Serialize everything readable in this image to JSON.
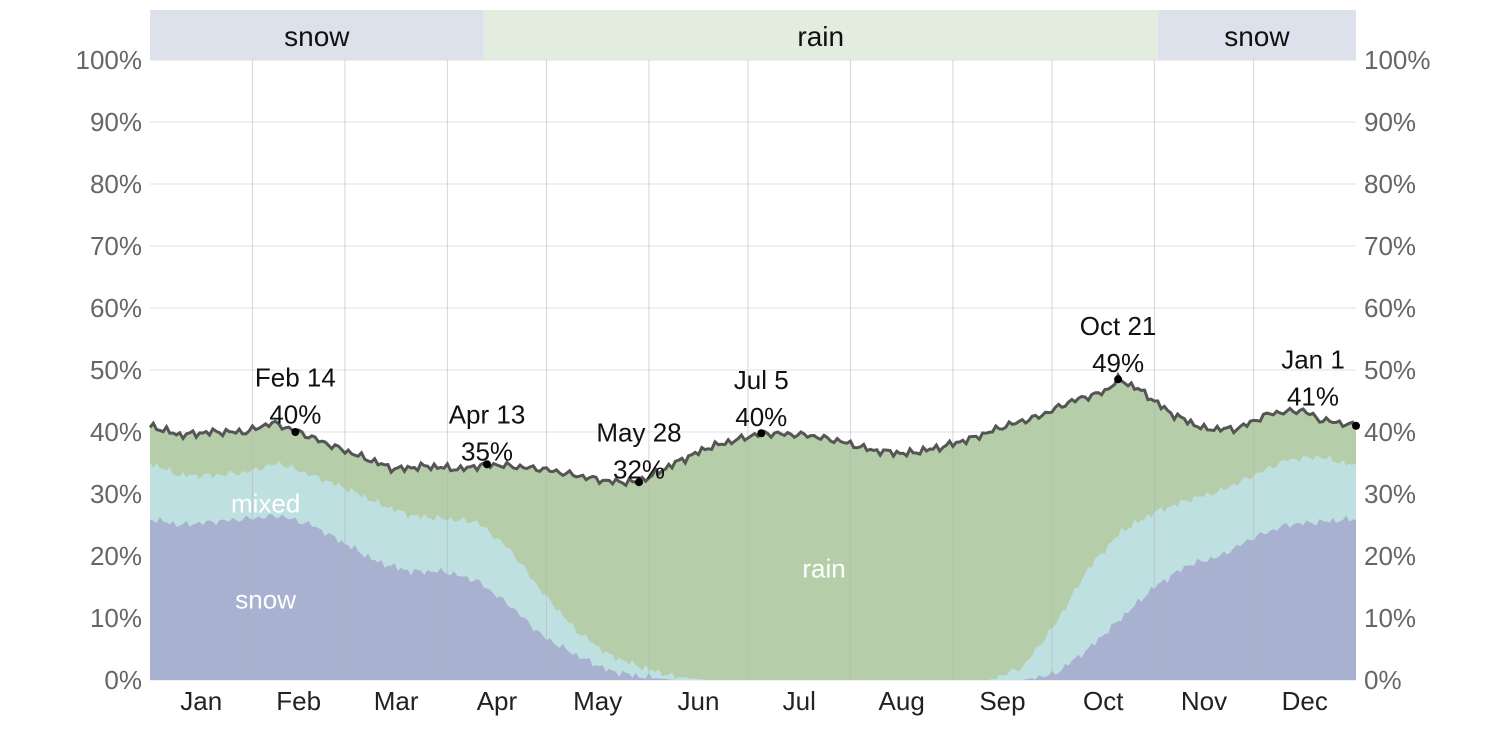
{
  "chart_data": {
    "type": "area",
    "ylim": [
      0,
      100
    ],
    "y_ticks": [
      "0%",
      "10%",
      "20%",
      "30%",
      "40%",
      "50%",
      "60%",
      "70%",
      "80%",
      "90%",
      "100%"
    ],
    "months": [
      "Jan",
      "Feb",
      "Mar",
      "Apr",
      "May",
      "Jun",
      "Jul",
      "Aug",
      "Sep",
      "Oct",
      "Nov",
      "Dec"
    ],
    "season_bands": [
      {
        "label": "snow",
        "start_day": 1,
        "end_day": 102,
        "color": "#dde1ec"
      },
      {
        "label": "rain",
        "start_day": 102,
        "end_day": 306,
        "color": "#e2ecdf"
      },
      {
        "label": "snow",
        "start_day": 306,
        "end_day": 366,
        "color": "#dde1ec"
      }
    ],
    "series": [
      {
        "name": "snow",
        "color": "#a8b1cf",
        "label_pos": {
          "day": 36,
          "value": 13
        },
        "points": [
          [
            1,
            26
          ],
          [
            10,
            25
          ],
          [
            20,
            25.5
          ],
          [
            30,
            26
          ],
          [
            40,
            26.5
          ],
          [
            50,
            25
          ],
          [
            60,
            22
          ],
          [
            70,
            19
          ],
          [
            80,
            17.5
          ],
          [
            90,
            17.5
          ],
          [
            100,
            16
          ],
          [
            110,
            12
          ],
          [
            120,
            7
          ],
          [
            130,
            4
          ],
          [
            140,
            1.5
          ],
          [
            150,
            0.5
          ],
          [
            160,
            0
          ],
          [
            260,
            0
          ],
          [
            265,
            0
          ],
          [
            275,
            1
          ],
          [
            285,
            5
          ],
          [
            295,
            10
          ],
          [
            305,
            15
          ],
          [
            315,
            18.5
          ],
          [
            325,
            20
          ],
          [
            335,
            23
          ],
          [
            345,
            25
          ],
          [
            355,
            25.5
          ],
          [
            366,
            26
          ]
        ]
      },
      {
        "name": "mixed",
        "color": "#bfe0e0",
        "label_pos": {
          "day": 36,
          "value": 28.5
        },
        "points": [
          [
            1,
            35
          ],
          [
            10,
            33
          ],
          [
            20,
            33
          ],
          [
            30,
            33.5
          ],
          [
            40,
            35
          ],
          [
            50,
            33
          ],
          [
            60,
            31
          ],
          [
            70,
            28.5
          ],
          [
            80,
            26.5
          ],
          [
            90,
            26
          ],
          [
            100,
            25.5
          ],
          [
            110,
            21
          ],
          [
            120,
            14
          ],
          [
            130,
            8
          ],
          [
            140,
            4
          ],
          [
            150,
            2
          ],
          [
            160,
            0.5
          ],
          [
            170,
            0
          ],
          [
            255,
            0
          ],
          [
            265,
            2
          ],
          [
            275,
            9
          ],
          [
            285,
            18
          ],
          [
            295,
            24
          ],
          [
            305,
            27
          ],
          [
            315,
            29
          ],
          [
            325,
            30.5
          ],
          [
            335,
            33
          ],
          [
            345,
            35.5
          ],
          [
            355,
            36
          ],
          [
            366,
            34.5
          ]
        ]
      },
      {
        "name": "rain",
        "color": "#b5cea9",
        "label_pos": {
          "day": 205,
          "value": 18
        },
        "points": [
          [
            1,
            41
          ],
          [
            10,
            39.5
          ],
          [
            20,
            40
          ],
          [
            30,
            40
          ],
          [
            38,
            41.5
          ],
          [
            46,
            40
          ],
          [
            55,
            38
          ],
          [
            65,
            36
          ],
          [
            75,
            34
          ],
          [
            85,
            34.5
          ],
          [
            95,
            34
          ],
          [
            103,
            34.8
          ],
          [
            110,
            34.5
          ],
          [
            120,
            34
          ],
          [
            130,
            33
          ],
          [
            140,
            32
          ],
          [
            149,
            31.9
          ],
          [
            160,
            35
          ],
          [
            170,
            37.5
          ],
          [
            186,
            39.8
          ],
          [
            200,
            39.5
          ],
          [
            210,
            38.5
          ],
          [
            220,
            37
          ],
          [
            230,
            36.5
          ],
          [
            240,
            37.5
          ],
          [
            250,
            39
          ],
          [
            260,
            41
          ],
          [
            270,
            42.5
          ],
          [
            280,
            45
          ],
          [
            290,
            46.5
          ],
          [
            294,
            48.5
          ],
          [
            300,
            47
          ],
          [
            310,
            43
          ],
          [
            320,
            40.5
          ],
          [
            330,
            40.5
          ],
          [
            340,
            43
          ],
          [
            350,
            43.5
          ],
          [
            355,
            42
          ],
          [
            366,
            41
          ]
        ]
      }
    ],
    "annotations": [
      {
        "date": "Feb 14",
        "day": 45,
        "value": 40,
        "label": "40%",
        "label_above": 1.4
      },
      {
        "date": "Apr 13",
        "day": 103,
        "value": 34.8,
        "label": "35%",
        "label_above": 0.6
      },
      {
        "date": "May 28",
        "day": 149,
        "value": 31.9,
        "label": "32%",
        "label_above": 0.6
      },
      {
        "date": "Jul 5",
        "day": 186,
        "value": 39.8,
        "label": "40%",
        "label_above": 1.2
      },
      {
        "date": "Oct 21",
        "day": 294,
        "value": 48.5,
        "label": "49%",
        "label_above": 1.2
      },
      {
        "date": "Jan 1",
        "day": 366,
        "value": 41,
        "label": "41%",
        "label_above": 3.3
      }
    ],
    "colors": {
      "grid": "#e1e1e1",
      "month_line": "#b4b4b4",
      "total_line": "#555555"
    }
  }
}
